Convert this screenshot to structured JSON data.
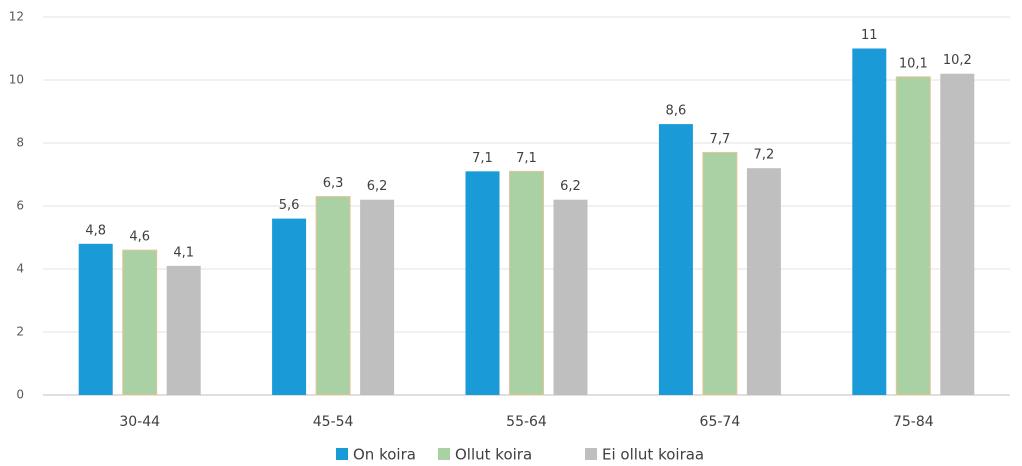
{
  "chart_data": {
    "type": "bar",
    "categories": [
      "30-44",
      "45-54",
      "55-64",
      "65-74",
      "75-84"
    ],
    "series": [
      {
        "name": "On koira",
        "color": "#1a9ad6",
        "values": [
          4.8,
          5.6,
          7.1,
          8.6,
          11
        ],
        "value_labels": [
          "4,8",
          "5,6",
          "7,1",
          "8,6",
          "11"
        ]
      },
      {
        "name": "Ollut koira",
        "color": "#a9d1a3",
        "values": [
          4.6,
          6.3,
          7.1,
          7.7,
          10.1
        ],
        "value_labels": [
          "4,6",
          "6,3",
          "7,1",
          "7,7",
          "10,1"
        ]
      },
      {
        "name": "Ei ollut koiraa",
        "color": "#bfbfbf",
        "values": [
          4.1,
          6.2,
          6.2,
          7.2,
          10.2
        ],
        "value_labels": [
          "4,1",
          "6,2",
          "6,2",
          "7,2",
          "10,2"
        ]
      }
    ],
    "ylim": [
      0,
      12
    ],
    "yticks": [
      0,
      2,
      4,
      6,
      8,
      10,
      12
    ],
    "grid": true,
    "legend": "bottom"
  }
}
